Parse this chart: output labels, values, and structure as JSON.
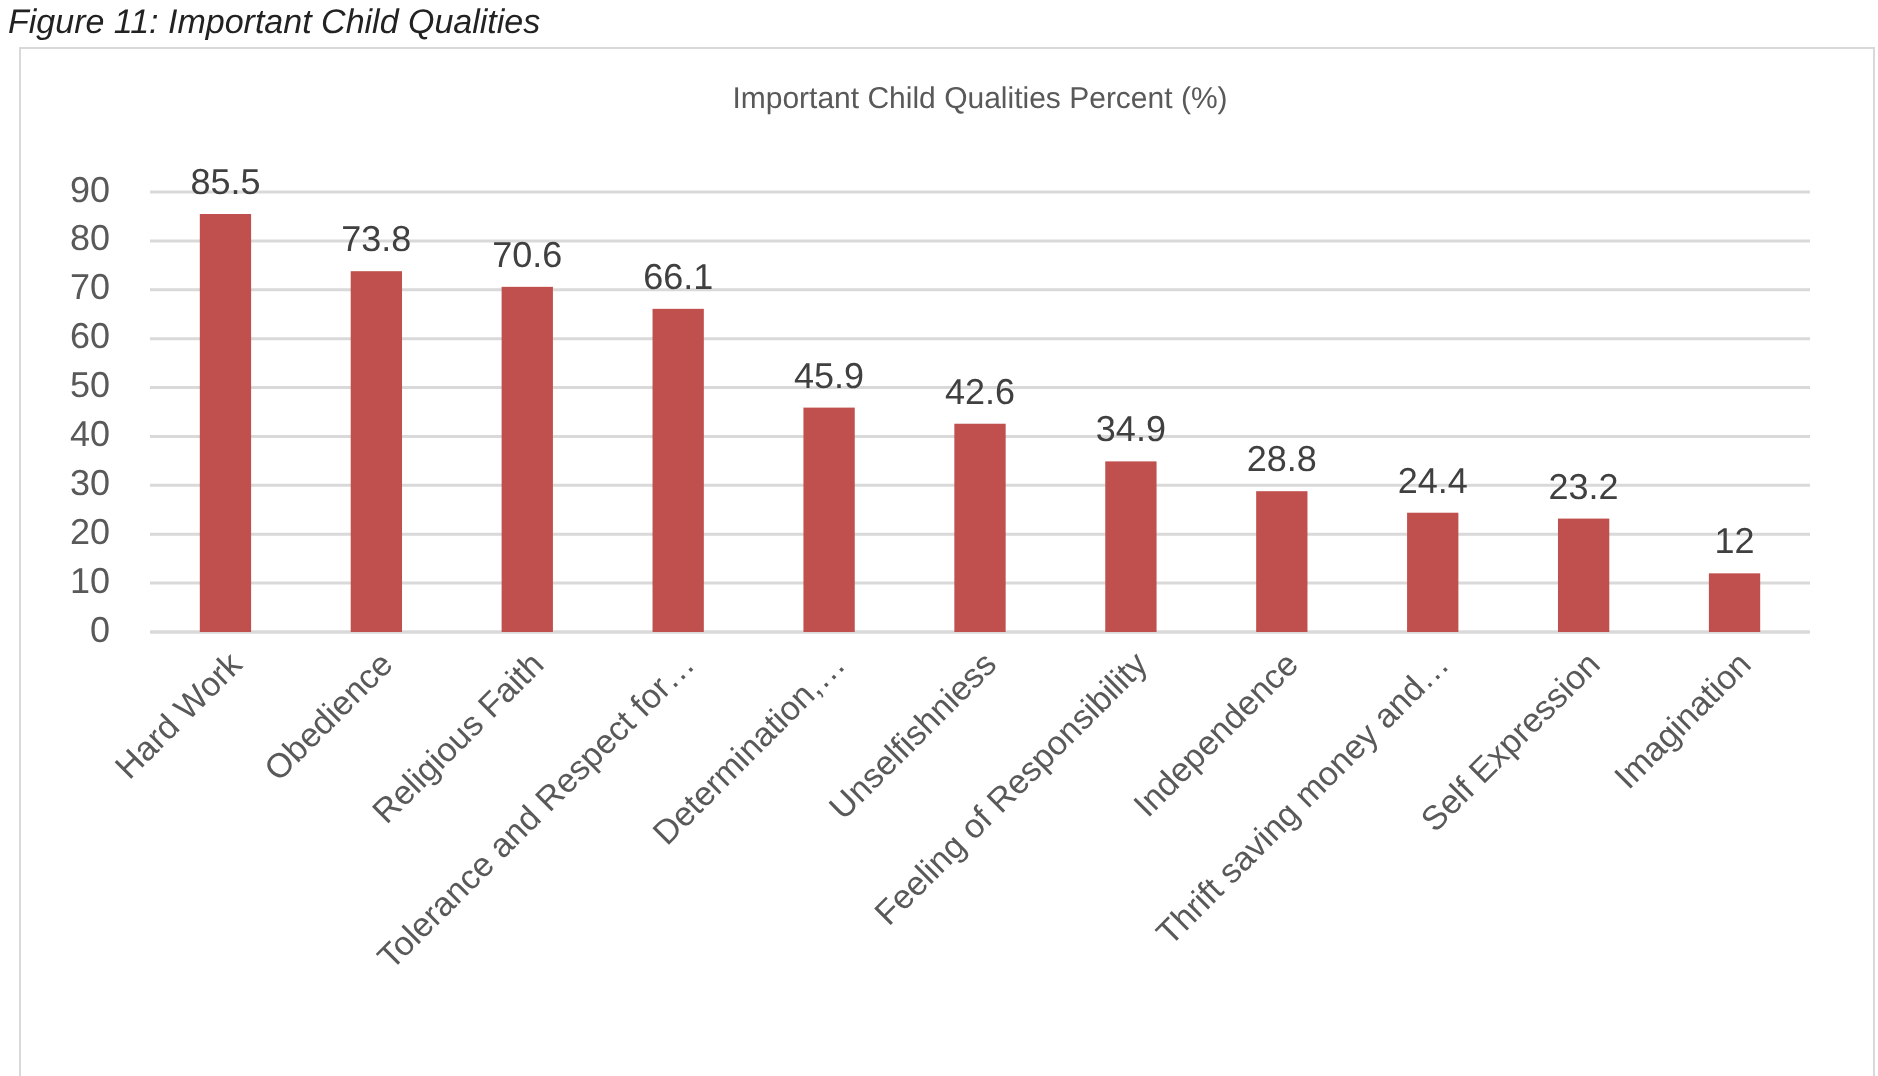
{
  "chart_data": {
    "type": "bar",
    "title": "Important Child Qualities  Percent (%)",
    "annotations": [
      "Figure 11: Important Child Qualities"
    ],
    "categories": [
      "Hard Work",
      "Obedience",
      "Religious Faith",
      "Tolerance and Respect for…",
      "Determination,…",
      "Unselfishniess",
      "Feeling of Responsibility",
      "Independence",
      "Thrift saving money and…",
      "Self Expression",
      "Imagination"
    ],
    "values": [
      85.5,
      73.8,
      70.6,
      66.1,
      45.9,
      42.6,
      34.9,
      28.8,
      24.4,
      23.2,
      12
    ],
    "color": "#c0504d",
    "ylim": [
      0,
      90
    ],
    "yticks": [
      0,
      10,
      20,
      30,
      40,
      50,
      60,
      70,
      80,
      90
    ],
    "grid": "y",
    "data_labels": true
  }
}
